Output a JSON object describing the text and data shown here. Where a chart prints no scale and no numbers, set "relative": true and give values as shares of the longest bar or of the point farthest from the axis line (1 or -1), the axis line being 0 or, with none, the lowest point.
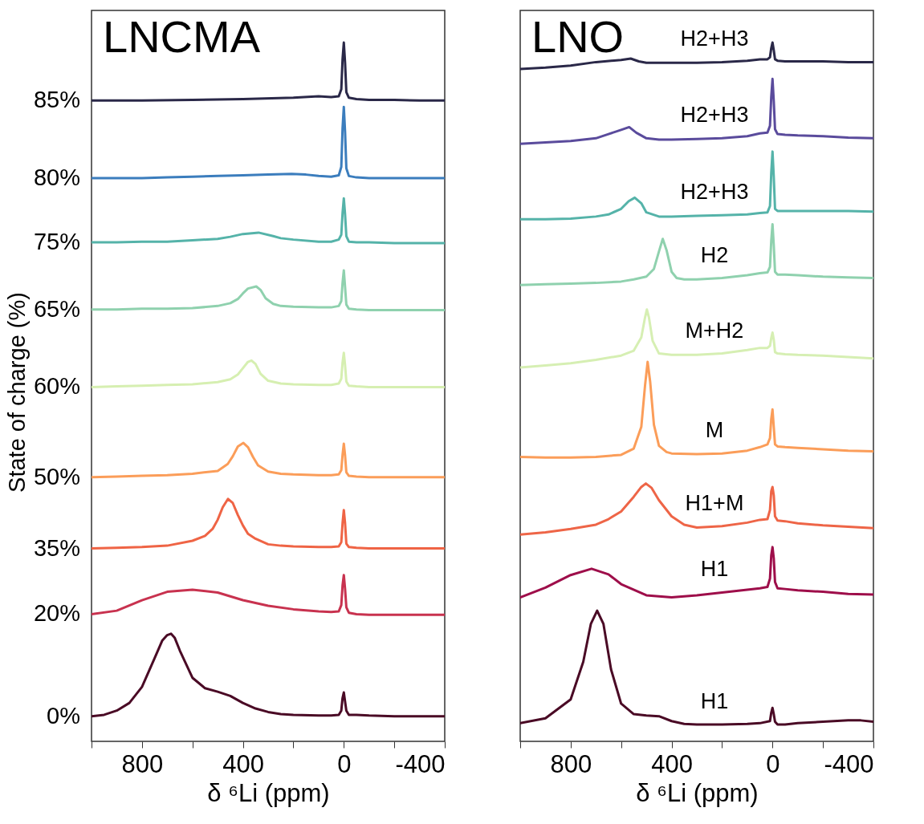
{
  "chart_data": [
    {
      "type": "line",
      "title": "LNCMA",
      "xlabel": "δ ⁶Li  (ppm)",
      "ylabel": "State of charge (%)",
      "relative": true,
      "xlim": [
        1000,
        -400
      ],
      "tick_labels": "x",
      "xticks": [
        {
          "value": 1000,
          "label": null
        },
        800,
        {
          "value": 600,
          "label": null
        },
        400,
        {
          "value": 200,
          "label": null
        },
        0,
        {
          "value": -200,
          "label": null
        },
        -400
      ],
      "series": [
        {
          "name": "0%",
          "color": "#4a0a25",
          "x": [
            1000,
            950,
            900,
            850,
            800,
            750,
            720,
            700,
            685,
            670,
            650,
            600,
            550,
            500,
            450,
            400,
            350,
            300,
            250,
            200,
            100,
            50,
            20,
            10,
            5,
            0,
            -5,
            -10,
            -20,
            -50,
            -100,
            -200,
            -300,
            -400
          ],
          "values": [
            0.036,
            0.038,
            0.044,
            0.055,
            0.078,
            0.119,
            0.144,
            0.152,
            0.154,
            0.148,
            0.13,
            0.091,
            0.076,
            0.071,
            0.065,
            0.055,
            0.047,
            0.042,
            0.039,
            0.038,
            0.037,
            0.037,
            0.038,
            0.044,
            0.062,
            0.07,
            0.057,
            0.044,
            0.038,
            0.038,
            0.037,
            0.036,
            0.036,
            0.036
          ]
        },
        {
          "name": "20%",
          "color": "#c8324f",
          "x": [
            1000,
            900,
            800,
            700,
            600,
            500,
            400,
            300,
            200,
            100,
            50,
            20,
            10,
            5,
            0,
            -5,
            -10,
            -20,
            -50,
            -100,
            -200,
            -300,
            -400
          ],
          "values": [
            0.182,
            0.187,
            0.202,
            0.214,
            0.217,
            0.213,
            0.202,
            0.194,
            0.189,
            0.186,
            0.185,
            0.186,
            0.195,
            0.223,
            0.238,
            0.218,
            0.192,
            0.184,
            0.182,
            0.181,
            0.181,
            0.181,
            0.181
          ]
        },
        {
          "name": "35%",
          "color": "#ef6445",
          "x": [
            1000,
            900,
            800,
            700,
            600,
            550,
            520,
            500,
            480,
            459,
            440,
            420,
            400,
            380,
            350,
            300,
            250,
            200,
            100,
            50,
            20,
            10,
            5,
            0,
            -5,
            -10,
            -20,
            -50,
            -100,
            -200,
            -300,
            -400
          ],
          "values": [
            0.276,
            0.277,
            0.278,
            0.28,
            0.287,
            0.294,
            0.304,
            0.317,
            0.335,
            0.347,
            0.341,
            0.324,
            0.309,
            0.297,
            0.29,
            0.282,
            0.28,
            0.279,
            0.278,
            0.278,
            0.279,
            0.285,
            0.312,
            0.331,
            0.312,
            0.283,
            0.278,
            0.277,
            0.276,
            0.276,
            0.276,
            0.276
          ]
        },
        {
          "name": "50%",
          "color": "#fb9d59",
          "x": [
            1000,
            900,
            800,
            700,
            600,
            500,
            460,
            440,
            420,
            398,
            380,
            360,
            340,
            300,
            250,
            200,
            100,
            50,
            20,
            10,
            5,
            0,
            -5,
            -10,
            -20,
            -50,
            -100,
            -200,
            -300,
            -400
          ],
          "values": [
            0.378,
            0.379,
            0.38,
            0.381,
            0.383,
            0.387,
            0.397,
            0.408,
            0.422,
            0.427,
            0.421,
            0.407,
            0.395,
            0.386,
            0.383,
            0.382,
            0.381,
            0.381,
            0.382,
            0.388,
            0.41,
            0.426,
            0.409,
            0.385,
            0.38,
            0.379,
            0.378,
            0.378,
            0.378,
            0.378
          ]
        },
        {
          "name": "60%",
          "color": "#d6efb1",
          "x": [
            1000,
            900,
            800,
            700,
            600,
            500,
            450,
            420,
            400,
            380,
            366,
            350,
            330,
            300,
            250,
            200,
            100,
            50,
            20,
            10,
            5,
            0,
            -5,
            -10,
            -20,
            -50,
            -100,
            -200,
            -300,
            -400
          ],
          "values": [
            0.507,
            0.508,
            0.509,
            0.51,
            0.511,
            0.514,
            0.518,
            0.525,
            0.534,
            0.543,
            0.545,
            0.54,
            0.526,
            0.516,
            0.512,
            0.511,
            0.51,
            0.51,
            0.512,
            0.519,
            0.542,
            0.556,
            0.538,
            0.515,
            0.509,
            0.508,
            0.507,
            0.507,
            0.507,
            0.507
          ]
        },
        {
          "name": "65%",
          "color": "#8fd1ae",
          "x": [
            1000,
            900,
            800,
            700,
            600,
            500,
            450,
            420,
            400,
            380,
            347,
            330,
            310,
            280,
            250,
            200,
            100,
            50,
            20,
            10,
            5,
            0,
            -5,
            -10,
            -20,
            -50,
            -100,
            -200,
            -300,
            -400
          ],
          "values": [
            0.618,
            0.618,
            0.619,
            0.619,
            0.62,
            0.623,
            0.627,
            0.633,
            0.641,
            0.648,
            0.651,
            0.646,
            0.634,
            0.626,
            0.623,
            0.622,
            0.621,
            0.621,
            0.623,
            0.63,
            0.656,
            0.674,
            0.65,
            0.625,
            0.619,
            0.618,
            0.617,
            0.617,
            0.617,
            0.617
          ]
        },
        {
          "name": "75%",
          "color": "#55b3a9",
          "x": [
            1000,
            900,
            800,
            700,
            600,
            500,
            450,
            400,
            338,
            280,
            250,
            200,
            100,
            50,
            20,
            10,
            5,
            0,
            -5,
            -10,
            -20,
            -50,
            -100,
            -200,
            -300,
            -400
          ],
          "values": [
            0.714,
            0.714,
            0.715,
            0.715,
            0.717,
            0.719,
            0.722,
            0.726,
            0.728,
            0.723,
            0.72,
            0.718,
            0.715,
            0.715,
            0.718,
            0.725,
            0.756,
            0.777,
            0.754,
            0.723,
            0.715,
            0.714,
            0.714,
            0.713,
            0.713,
            0.713
          ]
        },
        {
          "name": "80%",
          "color": "#3b7dbd",
          "x": [
            1000,
            900,
            800,
            700,
            600,
            500,
            400,
            300,
            207,
            150,
            100,
            50,
            20,
            10,
            5,
            0,
            -5,
            -10,
            -20,
            -50,
            -100,
            -200,
            -300,
            -400
          ],
          "values": [
            0.806,
            0.806,
            0.806,
            0.807,
            0.808,
            0.809,
            0.81,
            0.811,
            0.812,
            0.811,
            0.809,
            0.808,
            0.81,
            0.822,
            0.877,
            0.908,
            0.872,
            0.82,
            0.809,
            0.807,
            0.806,
            0.806,
            0.806,
            0.806
          ]
        },
        {
          "name": "85%",
          "color": "#2a2848",
          "x": [
            1000,
            800,
            600,
            400,
            200,
            100,
            50,
            20,
            10,
            5,
            0,
            -5,
            -10,
            -20,
            -50,
            -100,
            -200,
            -300,
            -400
          ],
          "values": [
            0.917,
            0.917,
            0.918,
            0.919,
            0.921,
            0.923,
            0.922,
            0.923,
            0.933,
            0.976,
            1,
            0.971,
            0.929,
            0.921,
            0.919,
            0.918,
            0.918,
            0.917,
            0.917
          ]
        }
      ]
    },
    {
      "type": "line",
      "title": "LNO",
      "xlabel": "δ ⁶Li  (ppm)",
      "relative": true,
      "xlim": [
        1000,
        -400
      ],
      "tick_labels": "x",
      "xticks": [
        {
          "value": 1000,
          "label": null
        },
        800,
        {
          "value": 600,
          "label": null
        },
        400,
        {
          "value": 200,
          "label": null
        },
        0,
        {
          "value": -200,
          "label": null
        },
        -400
      ],
      "series": [
        {
          "name": "H1",
          "color": "#4a0a25",
          "x": [
            1000,
            900,
            800,
            750,
            720,
            695,
            670,
            640,
            600,
            550,
            500,
            450,
            400,
            350,
            300,
            200,
            100,
            50,
            10,
            5,
            0,
            -5,
            -10,
            -20,
            -50,
            -100,
            -200,
            -300,
            -350,
            -400
          ],
          "values": [
            0.026,
            0.033,
            0.06,
            0.114,
            0.168,
            0.187,
            0.168,
            0.103,
            0.054,
            0.039,
            0.037,
            0.036,
            0.029,
            0.025,
            0.024,
            0.024,
            0.025,
            0.026,
            0.029,
            0.041,
            0.048,
            0.039,
            0.028,
            0.024,
            0.024,
            0.026,
            0.028,
            0.03,
            0.03,
            0.028
          ]
        },
        {
          "name": "H1",
          "color": "#9e0e4a",
          "x": [
            1000,
            900,
            800,
            717,
            650,
            600,
            500,
            400,
            300,
            200,
            100,
            50,
            20,
            10,
            5,
            0,
            -5,
            -10,
            -20,
            -50,
            -100,
            -200,
            -300,
            -400
          ],
          "values": [
            0.206,
            0.22,
            0.238,
            0.247,
            0.239,
            0.225,
            0.209,
            0.206,
            0.209,
            0.213,
            0.217,
            0.219,
            0.221,
            0.233,
            0.266,
            0.278,
            0.262,
            0.228,
            0.219,
            0.218,
            0.216,
            0.214,
            0.211,
            0.21
          ]
        },
        {
          "name": "H1+M",
          "color": "#ee6547",
          "x": [
            1000,
            900,
            800,
            700,
            650,
            600,
            550,
            520,
            502,
            480,
            450,
            400,
            350,
            300,
            200,
            100,
            50,
            20,
            10,
            5,
            0,
            -5,
            -10,
            -20,
            -50,
            -100,
            -200,
            -300,
            -400
          ],
          "values": [
            0.296,
            0.299,
            0.304,
            0.31,
            0.318,
            0.329,
            0.35,
            0.364,
            0.369,
            0.363,
            0.345,
            0.322,
            0.31,
            0.306,
            0.308,
            0.313,
            0.317,
            0.318,
            0.331,
            0.358,
            0.364,
            0.352,
            0.322,
            0.316,
            0.315,
            0.312,
            0.309,
            0.307,
            0.305
          ]
        },
        {
          "name": "M",
          "color": "#fb9d59",
          "x": [
            1000,
            900,
            800,
            700,
            600,
            550,
            520,
            505,
            495,
            485,
            470,
            450,
            420,
            400,
            300,
            200,
            100,
            50,
            20,
            10,
            5,
            0,
            -5,
            -10,
            -20,
            -50,
            -100,
            -200,
            -300,
            -400
          ],
          "values": [
            0.407,
            0.406,
            0.406,
            0.407,
            0.41,
            0.419,
            0.45,
            0.51,
            0.543,
            0.515,
            0.453,
            0.423,
            0.414,
            0.412,
            0.411,
            0.412,
            0.416,
            0.421,
            0.425,
            0.434,
            0.461,
            0.475,
            0.45,
            0.425,
            0.422,
            0.421,
            0.42,
            0.418,
            0.416,
            0.415
          ]
        },
        {
          "name": "M+H2",
          "color": "#d6efb3",
          "x": [
            1000,
            900,
            800,
            700,
            600,
            550,
            520,
            505,
            498,
            490,
            475,
            450,
            400,
            300,
            200,
            100,
            50,
            20,
            10,
            5,
            0,
            -5,
            -10,
            -20,
            -50,
            -100,
            -200,
            -300,
            -400
          ],
          "values": [
            0.535,
            0.538,
            0.541,
            0.546,
            0.552,
            0.559,
            0.578,
            0.607,
            0.618,
            0.607,
            0.573,
            0.555,
            0.553,
            0.553,
            0.555,
            0.56,
            0.563,
            0.563,
            0.566,
            0.577,
            0.585,
            0.575,
            0.557,
            0.555,
            0.554,
            0.553,
            0.552,
            0.55,
            0.548
          ]
        },
        {
          "name": "H2",
          "color": "#8fd1ae",
          "x": [
            1000,
            900,
            800,
            700,
            600,
            550,
            500,
            470,
            450,
            435,
            420,
            400,
            380,
            350,
            300,
            200,
            100,
            50,
            20,
            10,
            5,
            0,
            -5,
            -10,
            -20,
            -50,
            -100,
            -200,
            -300,
            -400
          ],
          "values": [
            0.653,
            0.654,
            0.655,
            0.656,
            0.658,
            0.661,
            0.665,
            0.676,
            0.701,
            0.719,
            0.703,
            0.672,
            0.663,
            0.661,
            0.661,
            0.663,
            0.667,
            0.67,
            0.671,
            0.679,
            0.716,
            0.74,
            0.71,
            0.672,
            0.668,
            0.668,
            0.667,
            0.665,
            0.664,
            0.663
          ]
        },
        {
          "name": "H2+H3",
          "color": "#55b3a9",
          "x": [
            1000,
            900,
            800,
            700,
            650,
            600,
            570,
            546,
            520,
            500,
            450,
            400,
            300,
            200,
            100,
            50,
            20,
            10,
            5,
            0,
            -5,
            -10,
            -20,
            -50,
            -100,
            -200,
            -300,
            -400
          ],
          "values": [
            0.747,
            0.747,
            0.748,
            0.751,
            0.754,
            0.762,
            0.773,
            0.778,
            0.77,
            0.757,
            0.751,
            0.751,
            0.752,
            0.753,
            0.754,
            0.756,
            0.757,
            0.766,
            0.813,
            0.844,
            0.808,
            0.762,
            0.759,
            0.759,
            0.759,
            0.759,
            0.759,
            0.758
          ]
        },
        {
          "name": "H2+H3",
          "color": "#5a4b9c",
          "x": [
            1000,
            900,
            800,
            700,
            650,
            600,
            568,
            540,
            500,
            450,
            400,
            300,
            200,
            100,
            50,
            20,
            10,
            5,
            0,
            -5,
            -10,
            -20,
            -50,
            -100,
            -200,
            -300,
            -400
          ],
          "values": [
            0.855,
            0.857,
            0.859,
            0.863,
            0.869,
            0.875,
            0.879,
            0.871,
            0.863,
            0.861,
            0.861,
            0.862,
            0.863,
            0.866,
            0.87,
            0.871,
            0.881,
            0.922,
            0.948,
            0.916,
            0.876,
            0.869,
            0.868,
            0.867,
            0.866,
            0.864,
            0.863
          ]
        },
        {
          "name": "H2+H3",
          "color": "#2a2848",
          "x": [
            1000,
            900,
            800,
            700,
            600,
            562,
            530,
            500,
            400,
            300,
            200,
            100,
            50,
            20,
            10,
            5,
            0,
            -5,
            -10,
            -20,
            -50,
            -100,
            -200,
            -300,
            -400
          ],
          "values": [
            0.962,
            0.964,
            0.967,
            0.972,
            0.975,
            0.977,
            0.973,
            0.971,
            0.971,
            0.971,
            0.972,
            0.974,
            0.976,
            0.976,
            0.979,
            0.992,
            1,
            0.989,
            0.976,
            0.974,
            0.973,
            0.973,
            0.973,
            0.972,
            0.972
          ]
        }
      ]
    }
  ]
}
